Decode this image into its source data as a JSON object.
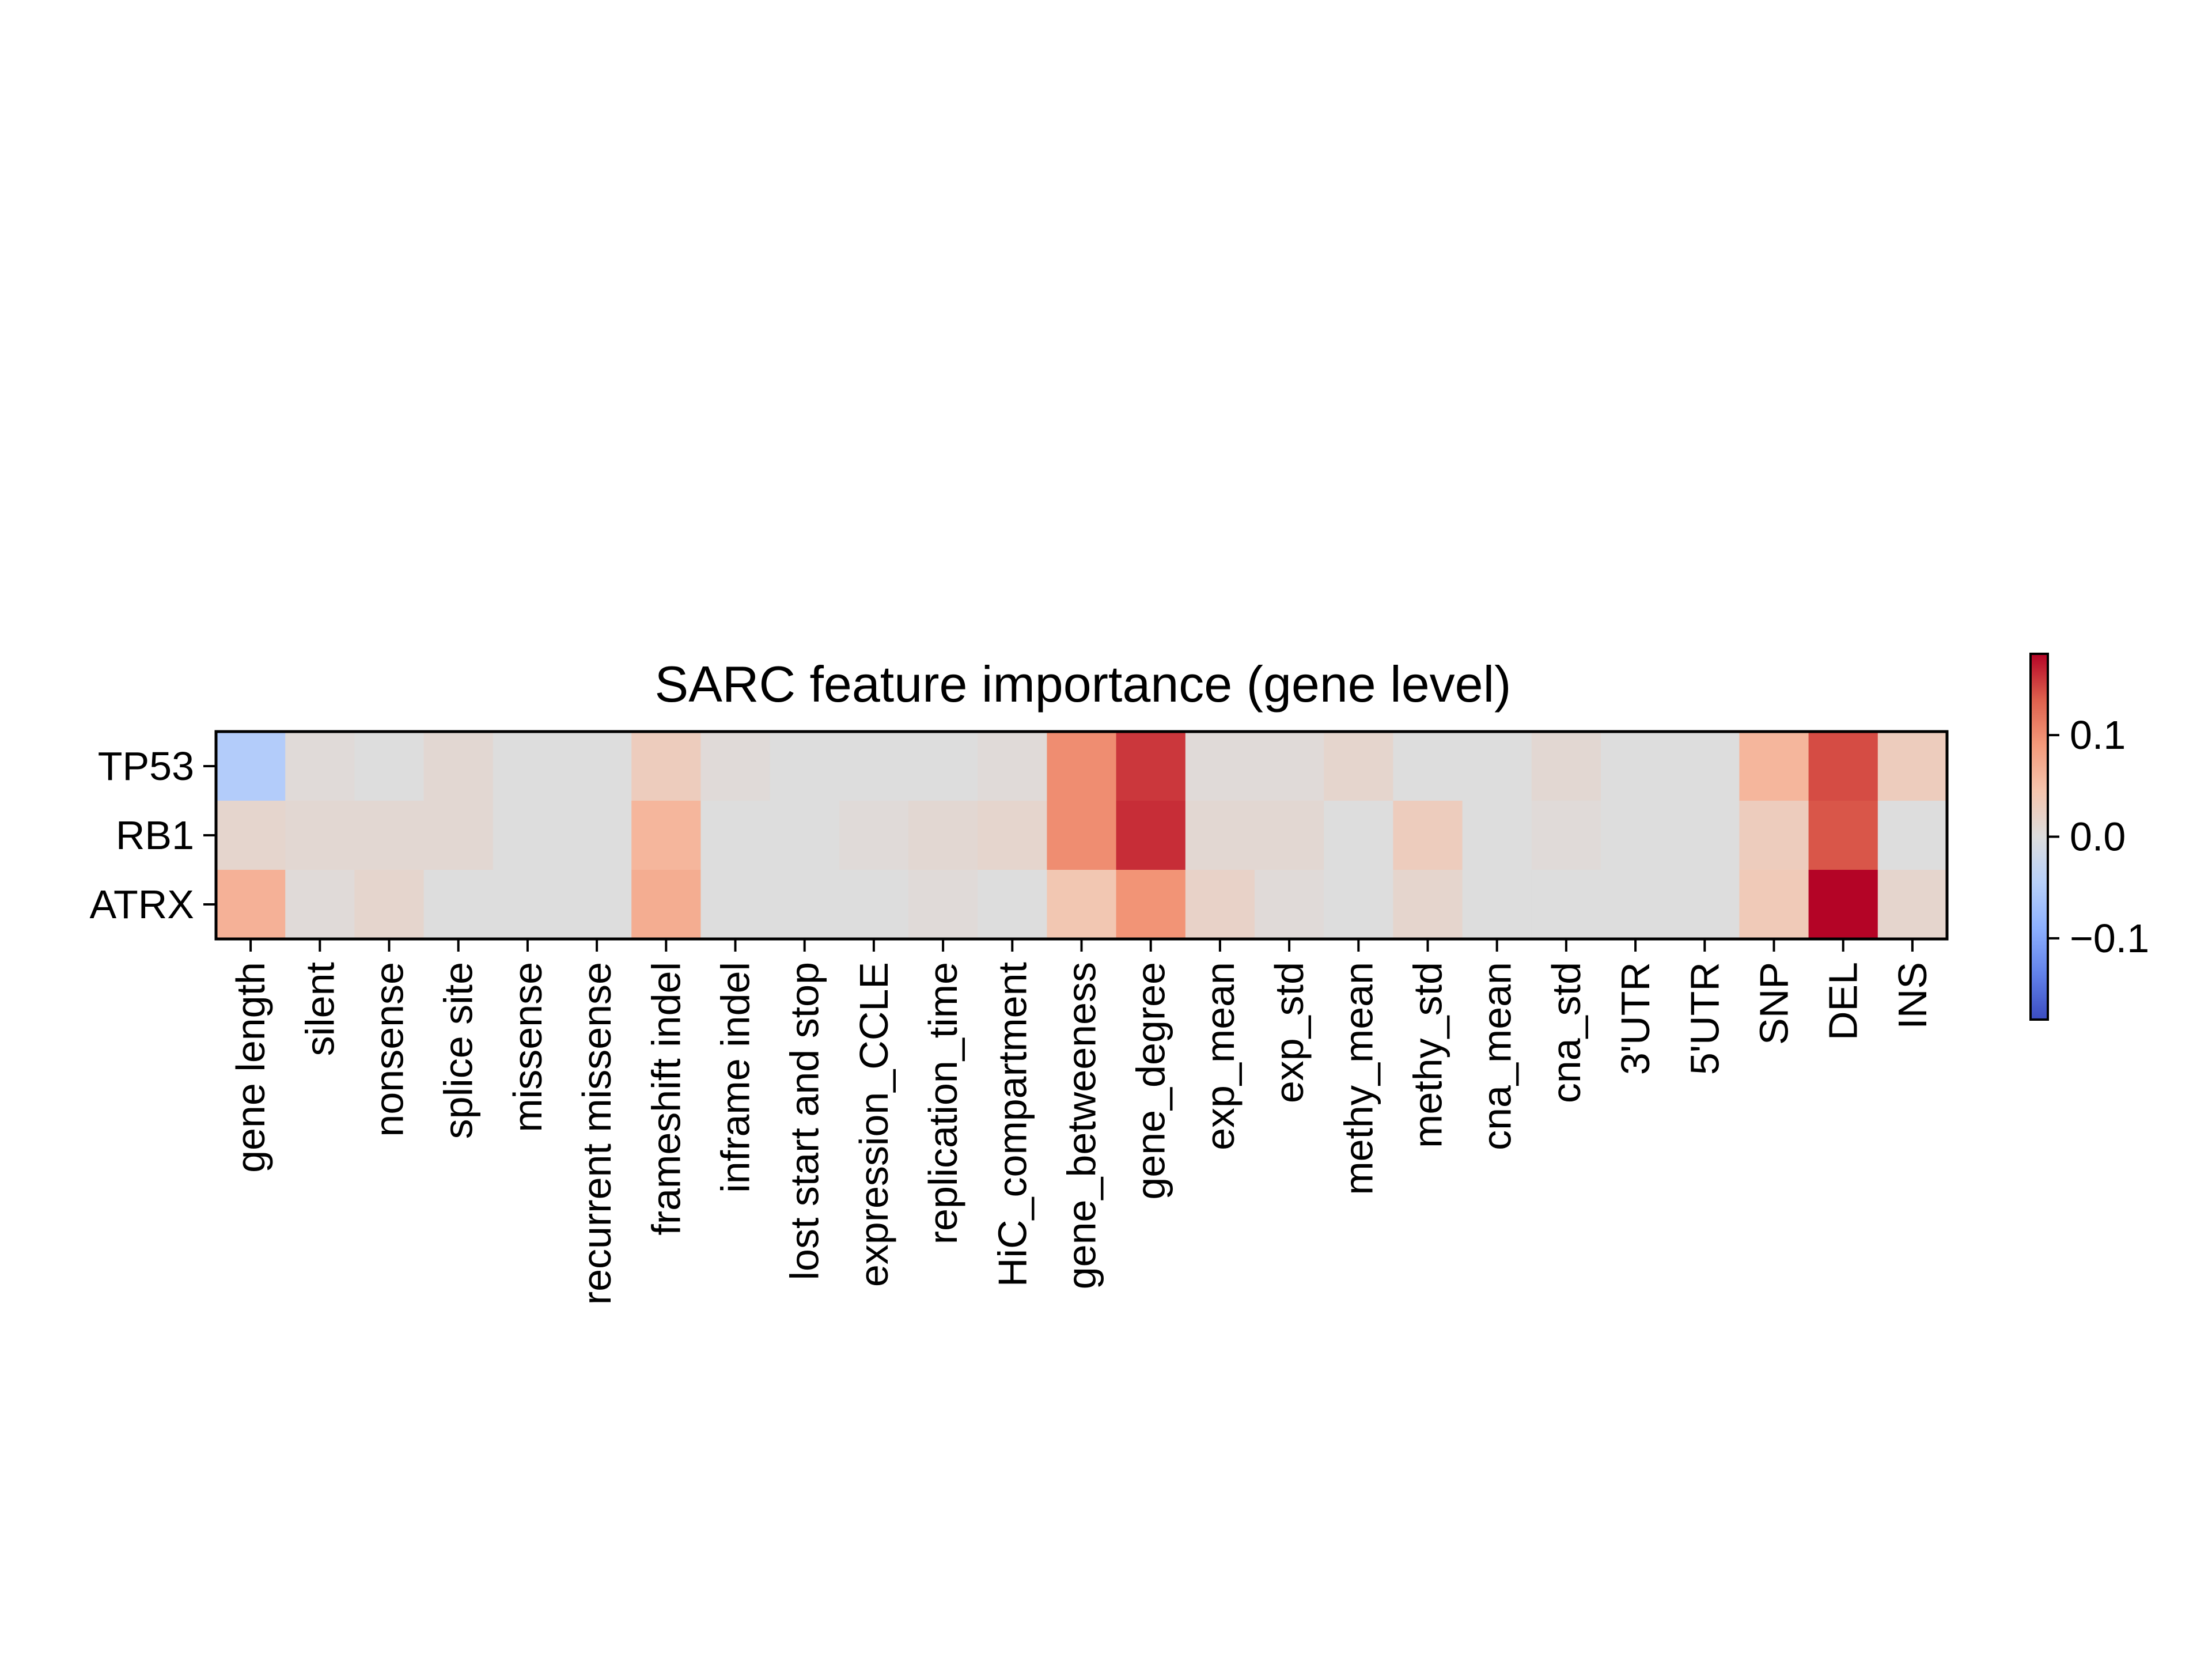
{
  "chart_data": {
    "type": "heatmap",
    "title": "SARC feature importance (gene level)",
    "xlabel": "",
    "ylabel": "",
    "rows": [
      "TP53",
      "RB1",
      "ATRX"
    ],
    "columns": [
      "gene length",
      "silent",
      "nonsense",
      "splice site",
      "missense",
      "recurrent missense",
      "frameshift indel",
      "inframe indel",
      "lost start and stop",
      "expression_CCLE",
      "replication_time",
      "HiC_compartment",
      "gene_betweeness",
      "gene_degree",
      "exp_mean",
      "exp_std",
      "methy_mean",
      "methy_std",
      "cna_mean",
      "cna_std",
      "3'UTR",
      "5'UTR",
      "SNP",
      "DEL",
      "INS"
    ],
    "values": [
      [
        -0.05,
        0.005,
        0.0,
        0.01,
        0.0,
        0.0,
        0.03,
        0.005,
        0.0,
        0.0,
        0.0,
        0.005,
        0.1,
        0.155,
        0.005,
        0.005,
        0.015,
        0.0,
        0.0,
        0.01,
        0.0,
        0.0,
        0.06,
        0.145,
        0.03
      ],
      [
        0.015,
        0.01,
        0.01,
        0.01,
        0.0,
        0.0,
        0.06,
        0.0,
        0.0,
        0.005,
        0.01,
        0.015,
        0.1,
        0.16,
        0.01,
        0.01,
        0.0,
        0.03,
        0.0,
        0.005,
        0.0,
        0.0,
        0.03,
        0.14,
        0.0
      ],
      [
        0.065,
        0.005,
        0.015,
        0.0,
        0.0,
        0.0,
        0.07,
        0.0,
        0.0,
        0.0,
        0.005,
        0.0,
        0.04,
        0.095,
        0.02,
        0.005,
        0.0,
        0.015,
        0.0,
        0.0,
        0.0,
        0.0,
        0.035,
        0.18,
        0.015
      ]
    ],
    "colormap": "coolwarm",
    "clim": [
      -0.18,
      0.18
    ],
    "colorbar": {
      "ticks": [
        0.1,
        0.0,
        -0.1
      ],
      "tick_labels": [
        "0.1",
        "0.0",
        "−0.1"
      ]
    },
    "grid": false,
    "legend": "colorbar-right"
  }
}
